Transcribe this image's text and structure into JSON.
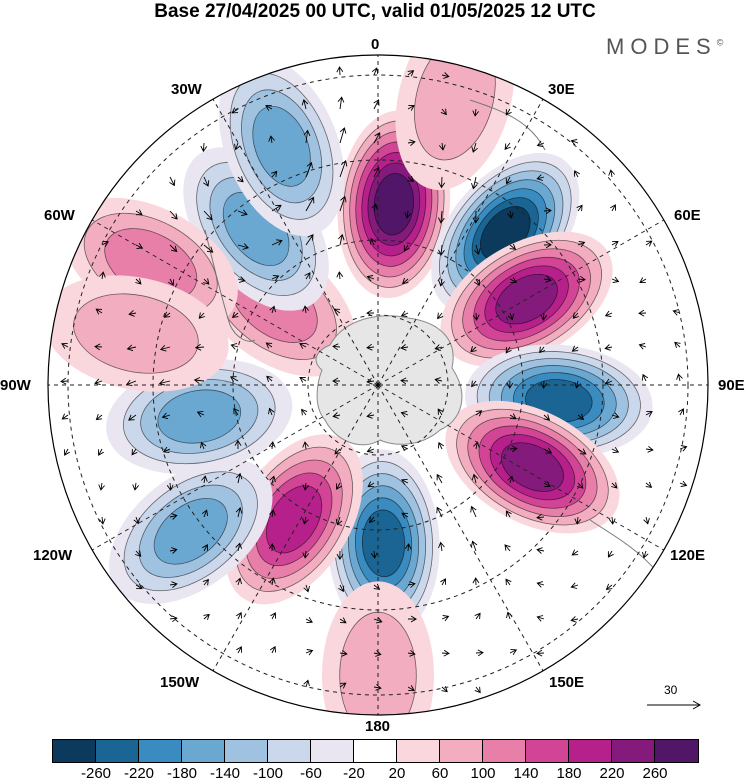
{
  "title": "Base 27/04/2025 00 UTC, valid 01/05/2025 12 UTC",
  "brand": "MODES",
  "brand_mark": "©",
  "longitude_labels": [
    "0",
    "30E",
    "60E",
    "90E",
    "120E",
    "150E",
    "180",
    "150W",
    "120W",
    "90W",
    "60W",
    "30W"
  ],
  "vector_scale_label": "30",
  "colorbar": {
    "colors": [
      "#0b3a5c",
      "#1b6594",
      "#3a8bbf",
      "#6aa8d1",
      "#9fc2e0",
      "#cbd7ea",
      "#e9e6f1",
      "#ffffff",
      "#f9d7dc",
      "#f2aec0",
      "#e77fa9",
      "#d24495",
      "#b5208a",
      "#841b7c",
      "#511668"
    ],
    "ticks": [
      "-260",
      "-220",
      "-180",
      "-140",
      "-100",
      "-60",
      "-20",
      "20",
      "60",
      "100",
      "140",
      "180",
      "220",
      "260"
    ]
  },
  "anomaly_centers": [
    {
      "lon": 5,
      "dist": 0.55,
      "value": 260
    },
    {
      "lon": 40,
      "dist": 0.6,
      "value": -260
    },
    {
      "lon": 60,
      "dist": 0.52,
      "value": 240
    },
    {
      "lon": 95,
      "dist": 0.55,
      "value": -240
    },
    {
      "lon": 118,
      "dist": 0.53,
      "value": 240
    },
    {
      "lon": 178,
      "dist": 0.48,
      "value": -220
    },
    {
      "lon": 212,
      "dist": 0.48,
      "value": 180
    },
    {
      "lon": 232,
      "dist": 0.72,
      "value": -140
    },
    {
      "lon": 308,
      "dist": 0.4,
      "value": 120
    },
    {
      "lon": 322,
      "dist": 0.6,
      "value": -140
    },
    {
      "lon": 298,
      "dist": 0.78,
      "value": 100
    },
    {
      "lon": 260,
      "dist": 0.55,
      "value": -140
    },
    {
      "lon": 338,
      "dist": 0.78,
      "value": -160
    },
    {
      "lon": 15,
      "dist": 0.9,
      "value": 60
    },
    {
      "lon": 180,
      "dist": 0.88,
      "value": 80
    },
    {
      "lon": 282,
      "dist": 0.75,
      "value": 60
    }
  ]
}
